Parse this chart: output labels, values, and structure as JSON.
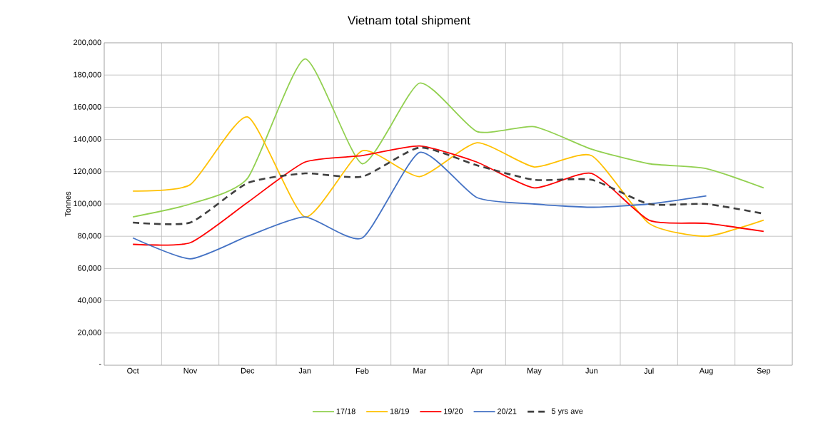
{
  "chart_data": {
    "type": "line",
    "title": "Vietnam total shipment",
    "ylabel": "Tonnes",
    "categories": [
      "Oct",
      "Nov",
      "Dec",
      "Jan",
      "Feb",
      "Mar",
      "Apr",
      "May",
      "Jun",
      "Jul",
      "Aug",
      "Sep"
    ],
    "series": [
      {
        "name": "17/18",
        "color": "#92d050",
        "values": [
          92000,
          100000,
          116000,
          190000,
          125000,
          175000,
          145000,
          148000,
          134000,
          125000,
          122000,
          110000
        ]
      },
      {
        "name": "18/19",
        "color": "#ffc000",
        "values": [
          108000,
          112000,
          154000,
          92000,
          133000,
          117000,
          138000,
          123000,
          130000,
          88000,
          80000,
          90000
        ]
      },
      {
        "name": "19/20",
        "color": "#ff0000",
        "values": [
          75000,
          76000,
          101000,
          126000,
          130000,
          136000,
          126000,
          110000,
          119000,
          90000,
          88000,
          83000
        ]
      },
      {
        "name": "20/21",
        "color": "#4472c4",
        "values": [
          79000,
          66000,
          80000,
          92000,
          79000,
          132000,
          104000,
          100000,
          98000,
          100000,
          105000,
          null
        ]
      },
      {
        "name": "5 yrs ave",
        "color": "#404040",
        "line_style": "dashed",
        "values": [
          88500,
          88500,
          113000,
          119000,
          117000,
          135000,
          124000,
          115000,
          115000,
          100000,
          100000,
          94000
        ]
      }
    ],
    "ylim": [
      0,
      200000
    ],
    "yticks": [
      {
        "value": 0,
        "label": "-"
      },
      {
        "value": 20000,
        "label": "20,000"
      },
      {
        "value": 40000,
        "label": "40,000"
      },
      {
        "value": 60000,
        "label": "60,000"
      },
      {
        "value": 80000,
        "label": "80,000"
      },
      {
        "value": 100000,
        "label": "100,000"
      },
      {
        "value": 120000,
        "label": "120,000"
      },
      {
        "value": 140000,
        "label": "140,000"
      },
      {
        "value": 160000,
        "label": "160,000"
      },
      {
        "value": 180000,
        "label": "180,000"
      },
      {
        "value": 200000,
        "label": "200,000"
      }
    ],
    "grid": true,
    "legend": "bottom",
    "marker": "none",
    "line_style": "solid"
  }
}
